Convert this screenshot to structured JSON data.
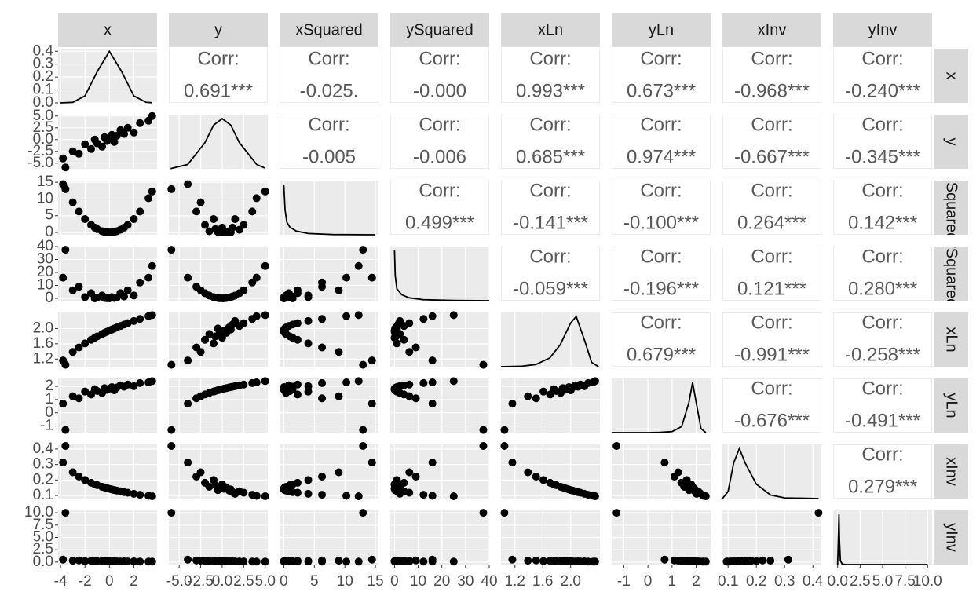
{
  "chart_data": {
    "type": "pairs",
    "corr_label": "Corr:",
    "density_ylim": [
      0,
      0.42
    ],
    "density_yticks": [
      {
        "value": 0,
        "label": "0.0"
      },
      0.1,
      0.2,
      0.3,
      0.4
    ],
    "variables": [
      {
        "name": "x",
        "lim": [
          -4.2,
          3.9
        ],
        "ticks": [
          -4,
          -2,
          0,
          2
        ],
        "values": [
          -3.8,
          -3.0,
          -2.5,
          -2.0,
          -1.5,
          -1.2,
          -1.0,
          -0.6,
          -0.4,
          -0.2,
          0.0,
          0.2,
          0.4,
          0.6,
          0.9,
          1.2,
          1.5,
          2.0,
          2.5,
          3.2,
          3.5,
          -3.6
        ],
        "density": {
          "x": [
            -4,
            -3,
            -2,
            -1,
            0,
            1,
            2,
            3,
            3.5
          ],
          "y": [
            0.0,
            0.004,
            0.054,
            0.242,
            0.399,
            0.242,
            0.054,
            0.004,
            0.001
          ]
        }
      },
      {
        "name": "y",
        "lim": [
          -6.2,
          5.3
        ],
        "ticks": [
          {
            "value": -5,
            "label": "-5.0"
          },
          {
            "value": -2.5,
            "label": "-2.5"
          },
          {
            "value": 0,
            "label": "0.0"
          },
          {
            "value": 2.5,
            "label": "2.5"
          },
          {
            "value": 5,
            "label": "5.0"
          }
        ],
        "values": [
          -4.0,
          -2.5,
          -3.0,
          -1.0,
          -2.0,
          0.0,
          -0.8,
          -1.5,
          0.5,
          -0.3,
          0.2,
          1.0,
          -0.5,
          0.8,
          2.0,
          1.2,
          2.5,
          1.5,
          3.5,
          4.0,
          5.0,
          -5.9
        ],
        "density": {
          "x": [
            -6,
            -4,
            -2,
            -1,
            0,
            1,
            2,
            4,
            5
          ],
          "y": [
            0.001,
            0.02,
            0.12,
            0.2,
            0.23,
            0.2,
            0.12,
            0.02,
            0.003
          ]
        }
      },
      {
        "name": "xSquared",
        "lim": [
          -0.7,
          15.5
        ],
        "ticks": [
          0,
          5,
          10,
          15
        ],
        "values": [
          14.44,
          9,
          6.25,
          4,
          2.25,
          1.44,
          1,
          0.36,
          0.16,
          0.04,
          0,
          0.04,
          0.16,
          0.36,
          0.81,
          1.44,
          2.25,
          4,
          6.25,
          10.24,
          12.25,
          12.96
        ],
        "density": {
          "x": [
            0,
            0.2,
            0.5,
            1,
            2,
            4,
            8,
            15
          ],
          "y": [
            2.0,
            1.0,
            0.5,
            0.3,
            0.15,
            0.05,
            0.01,
            0.0
          ]
        }
      },
      {
        "name": "ySquared",
        "lim": [
          -1.8,
          40
        ],
        "ticks": [
          0,
          10,
          20,
          30,
          40
        ],
        "values": [
          16,
          6.25,
          9,
          1,
          4,
          0,
          0.64,
          2.25,
          0.25,
          0.09,
          0.04,
          1,
          0.25,
          0.64,
          4,
          1.44,
          6.25,
          2.25,
          12.25,
          16,
          25,
          37.5
        ],
        "density": {
          "x": [
            0,
            0.3,
            1,
            3,
            6,
            12,
            25,
            40
          ],
          "y": [
            0.5,
            0.25,
            0.12,
            0.06,
            0.03,
            0.01,
            0.002,
            0
          ]
        }
      },
      {
        "name": "xLn",
        "lim": [
          1.0,
          2.42
        ],
        "ticks": [
          1.2,
          1.6,
          {
            "value": 2,
            "label": "2.0"
          }
        ],
        "values": [
          1.163,
          1.386,
          1.504,
          1.609,
          1.705,
          1.758,
          1.792,
          1.856,
          1.887,
          1.917,
          1.946,
          1.974,
          2.001,
          2.028,
          2.067,
          2.104,
          2.14,
          2.197,
          2.251,
          2.322,
          2.351,
          1.05
        ],
        "density": {
          "x": [
            1.0,
            1.3,
            1.5,
            1.7,
            1.85,
            2.0,
            2.08,
            2.2,
            2.3,
            2.4
          ],
          "y": [
            0,
            0.02,
            0.1,
            0.4,
            1.0,
            2.0,
            2.3,
            1.2,
            0.2,
            0
          ]
        }
      },
      {
        "name": "yLn",
        "lim": [
          -1.5,
          2.6
        ],
        "ticks": [
          -1,
          0,
          1,
          2
        ],
        "values": [
          0.693,
          1.253,
          1.099,
          1.609,
          1.386,
          1.792,
          1.649,
          1.504,
          1.872,
          1.74,
          1.825,
          1.946,
          1.705,
          1.917,
          2.079,
          1.974,
          2.14,
          2.015,
          2.251,
          2.303,
          2.398,
          -1.3
        ],
        "density": {
          "x": [
            -1.5,
            -1,
            0,
            0.5,
            1.0,
            1.4,
            1.7,
            1.85,
            2.0,
            2.2,
            2.4
          ],
          "y": [
            0,
            0,
            0,
            0.01,
            0.05,
            0.3,
            1.5,
            2.5,
            1.5,
            0.2,
            0
          ]
        }
      },
      {
        "name": "xInv",
        "lim": [
          0.08,
          0.43
        ],
        "ticks": [
          0.1,
          0.2,
          0.3,
          0.4
        ],
        "values": [
          0.313,
          0.25,
          0.222,
          0.2,
          0.182,
          0.172,
          0.167,
          0.156,
          0.152,
          0.147,
          0.143,
          0.139,
          0.135,
          0.132,
          0.127,
          0.122,
          0.118,
          0.111,
          0.105,
          0.098,
          0.095,
          0.42
        ],
        "density": {
          "x": [
            0.08,
            0.1,
            0.12,
            0.14,
            0.16,
            0.2,
            0.25,
            0.3,
            0.42
          ],
          "y": [
            0,
            2,
            10,
            14,
            10,
            4,
            1,
            0.2,
            0
          ]
        }
      },
      {
        "name": "yInv",
        "lim": [
          -0.5,
          10.5
        ],
        "ticks": [
          {
            "value": 0,
            "label": "0.0"
          },
          {
            "value": 2.5,
            "label": "2.5"
          },
          {
            "value": 5,
            "label": "5.0"
          },
          {
            "value": 7.5,
            "label": "7.5"
          },
          {
            "value": 10,
            "label": "10.0"
          }
        ],
        "values": [
          0.5,
          0.286,
          0.333,
          0.2,
          0.25,
          0.167,
          0.192,
          0.222,
          0.154,
          0.175,
          0.161,
          0.143,
          0.182,
          0.147,
          0.125,
          0.139,
          0.118,
          0.133,
          0.105,
          0.1,
          0.091,
          10
        ],
        "density": {
          "x": [
            0,
            0.1,
            0.15,
            0.2,
            0.3,
            0.5,
            1,
            10
          ],
          "y": [
            0,
            8,
            12,
            6,
            1,
            0.1,
            0,
            0
          ]
        }
      }
    ],
    "correlations": [
      {
        "values": [
          0.691,
          -0.025,
          0,
          0.993,
          0.673,
          -0.968,
          -0.24
        ],
        "value_labels": [
          "0.691***",
          "-0.025.",
          "-0.000",
          "0.993***",
          "0.673***",
          "-0.968***",
          "-0.240***"
        ]
      },
      {
        "values": [
          -0.005,
          -0.006,
          0.685,
          0.974,
          -0.667,
          -0.345
        ],
        "value_labels": [
          "-0.005",
          "-0.006",
          "0.685***",
          "0.974***",
          "-0.667***",
          "-0.345***"
        ]
      },
      {
        "values": [
          0.499,
          -0.141,
          -0.1,
          0.264,
          0.142
        ],
        "value_labels": [
          "0.499***",
          "-0.141***",
          "-0.100***",
          "0.264***",
          "0.142***"
        ]
      },
      {
        "values": [
          -0.059,
          -0.196,
          0.121,
          0.28
        ],
        "value_labels": [
          "-0.059***",
          "-0.196***",
          "0.121***",
          "0.280***"
        ]
      },
      {
        "values": [
          0.679,
          -0.991,
          -0.258
        ],
        "value_labels": [
          "0.679***",
          "-0.991***",
          "-0.258***"
        ]
      },
      {
        "values": [
          -0.676,
          -0.491
        ],
        "value_labels": [
          "-0.676***",
          "-0.491***"
        ]
      },
      {
        "values": [
          0.279
        ],
        "value_labels": [
          "0.279***"
        ]
      }
    ]
  }
}
